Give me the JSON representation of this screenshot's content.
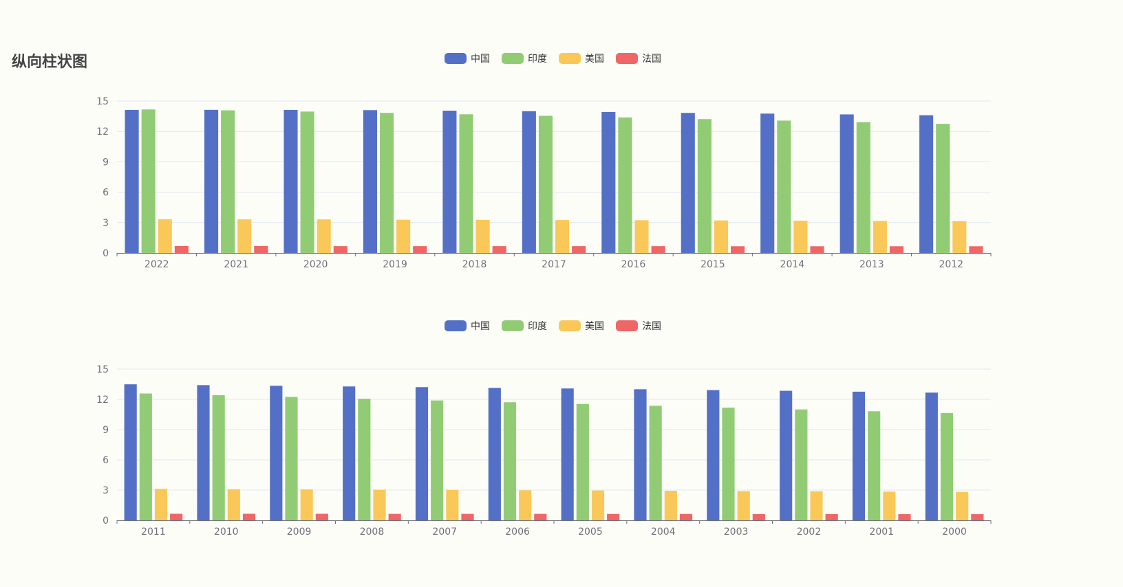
{
  "title": "纵向柱状图",
  "chart_data": [
    {
      "type": "bar",
      "title": "",
      "xlabel": "",
      "ylabel": "",
      "ylim": [
        0,
        15
      ],
      "yticks": [
        0,
        3,
        6,
        9,
        12,
        15
      ],
      "grid": true,
      "legend_position": "top-center",
      "categories": [
        "2022",
        "2021",
        "2020",
        "2019",
        "2018",
        "2017",
        "2016",
        "2015",
        "2014",
        "2013",
        "2012"
      ],
      "series": [
        {
          "name": "中国",
          "color": "#5470c6",
          "values": [
            14.12,
            14.13,
            14.12,
            14.1,
            14.05,
            14.0,
            13.92,
            13.83,
            13.76,
            13.68,
            13.6
          ]
        },
        {
          "name": "印度",
          "color": "#91cc75",
          "values": [
            14.17,
            14.08,
            13.96,
            13.83,
            13.69,
            13.54,
            13.38,
            13.22,
            13.07,
            12.91,
            12.75
          ]
        },
        {
          "name": "美国",
          "color": "#fac858",
          "values": [
            3.33,
            3.32,
            3.31,
            3.28,
            3.27,
            3.25,
            3.23,
            3.21,
            3.19,
            3.16,
            3.14
          ]
        },
        {
          "name": "法国",
          "color": "#ee6666",
          "values": [
            0.68,
            0.68,
            0.67,
            0.67,
            0.67,
            0.67,
            0.67,
            0.66,
            0.66,
            0.66,
            0.66
          ]
        }
      ]
    },
    {
      "type": "bar",
      "title": "",
      "xlabel": "",
      "ylabel": "",
      "ylim": [
        0,
        15
      ],
      "yticks": [
        0,
        3,
        6,
        9,
        12,
        15
      ],
      "grid": true,
      "legend_position": "top-center",
      "categories": [
        "2011",
        "2010",
        "2009",
        "2008",
        "2007",
        "2006",
        "2005",
        "2004",
        "2003",
        "2002",
        "2001",
        "2000"
      ],
      "series": [
        {
          "name": "中国",
          "color": "#5470c6",
          "values": [
            13.49,
            13.41,
            13.35,
            13.28,
            13.21,
            13.14,
            13.08,
            13.0,
            12.92,
            12.85,
            12.76,
            12.67
          ]
        },
        {
          "name": "印度",
          "color": "#91cc75",
          "values": [
            12.58,
            12.41,
            12.24,
            12.06,
            11.89,
            11.71,
            11.54,
            11.36,
            11.18,
            11.0,
            10.82,
            10.64
          ]
        },
        {
          "name": "美国",
          "color": "#fac858",
          "values": [
            3.12,
            3.09,
            3.07,
            3.04,
            3.01,
            2.98,
            2.96,
            2.93,
            2.9,
            2.88,
            2.85,
            2.82
          ]
        },
        {
          "name": "法国",
          "color": "#ee6666",
          "values": [
            0.65,
            0.65,
            0.65,
            0.64,
            0.64,
            0.64,
            0.63,
            0.63,
            0.62,
            0.62,
            0.61,
            0.61
          ]
        }
      ]
    }
  ]
}
